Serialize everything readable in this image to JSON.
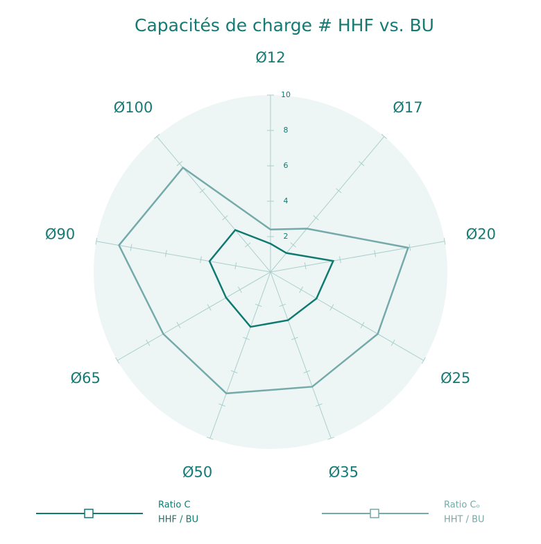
{
  "chart_data": {
    "type": "radar",
    "title": "Capacités de charge # HHF vs. BU",
    "categories": [
      "Ø12",
      "Ø17",
      "Ø20",
      "Ø25",
      "Ø35",
      "Ø50",
      "Ø65",
      "Ø90",
      "Ø100"
    ],
    "ylim": [
      0,
      10
    ],
    "yticks": [
      2,
      4,
      6,
      8,
      10
    ],
    "series": [
      {
        "name": "Ratio C",
        "sublabel": "HHF / BU",
        "color": "#0e7a70",
        "values": [
          1.6,
          1.4,
          3.6,
          3.0,
          2.9,
          3.3,
          2.9,
          3.5,
          3.1
        ]
      },
      {
        "name": "Ratio Cₒ",
        "sublabel": "HHT / BU",
        "color": "#74aaa9",
        "values": [
          2.4,
          3.2,
          7.9,
          7.0,
          6.9,
          7.3,
          7.0,
          8.7,
          7.7
        ]
      }
    ]
  }
}
